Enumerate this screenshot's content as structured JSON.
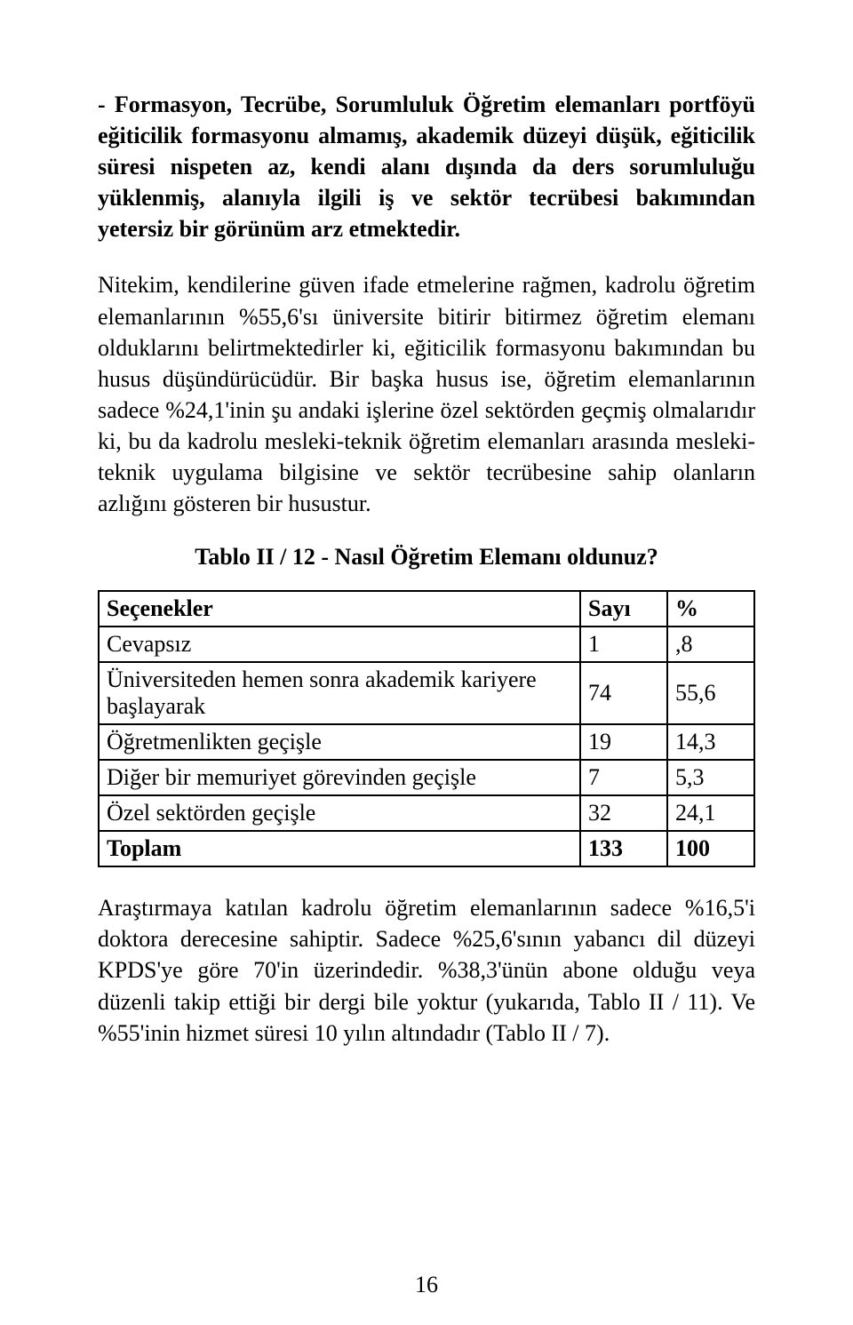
{
  "heading": "- Formasyon, Tecrübe, Sorumluluk\nÖğretim elemanları portföyü eğiticilik formasyonu almamış, akademik düzeyi düşük, eğiticilik süresi nispeten az, kendi alanı dışında da ders sorumluluğu yüklenmiş, alanıyla ilgili iş ve sektör tecrübesi bakımından yetersiz bir görünüm arz etmektedir.",
  "para1": "Nitekim, kendilerine güven ifade etmelerine rağmen, kadrolu öğretim elemanlarının %55,6'sı üniversite bitirir bitirmez öğretim elemanı olduklarını belirtmektedirler ki, eğiticilik formasyonu bakımından bu husus düşündürücüdür. Bir başka husus ise, öğretim elemanlarının sadece %24,1'inin şu andaki işlerine özel sektörden geçmiş olmalarıdır ki, bu da kadrolu mesleki-teknik öğretim elemanları arasında mesleki-teknik uygulama bilgisine ve sektör tecrübesine sahip olanların azlığını gösteren bir husustur.",
  "table": {
    "title": "Tablo II / 12 - Nasıl Öğretim Elemanı oldunuz?",
    "columns": [
      "Seçenekler",
      "Sayı",
      "%"
    ],
    "rows": [
      [
        "Cevapsız",
        "1",
        ",8"
      ],
      [
        "Üniversiteden hemen sonra akademik kariyere başlayarak",
        "74",
        "55,6"
      ],
      [
        "Öğretmenlikten geçişle",
        "19",
        "14,3"
      ],
      [
        "Diğer bir memuriyet görevinden geçişle",
        "7",
        "5,3"
      ],
      [
        "Özel sektörden geçişle",
        "32",
        "24,1"
      ]
    ],
    "total": [
      "Toplam",
      "133",
      "100"
    ]
  },
  "para2": "Araştırmaya katılan kadrolu öğretim elemanlarının sadece %16,5'i doktora derecesine sahiptir. Sadece %25,6'sının yabancı dil düzeyi KPDS'ye göre 70'in üzerindedir. %38,3'ünün abone olduğu veya düzenli takip ettiği bir dergi bile yoktur (yukarıda, Tablo II / 11). Ve %55'inin hizmet süresi 10 yılın altındadır (Tablo II / 7).",
  "page_number": "16"
}
